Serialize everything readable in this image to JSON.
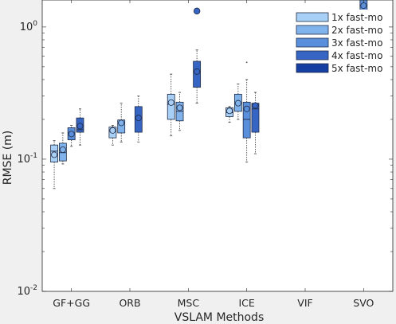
{
  "chart_data": {
    "type": "box",
    "title": "",
    "xlabel": "VSLAM Methods",
    "ylabel": "RMSE (m)",
    "y_scale": "log",
    "ylim": [
      0.01,
      1.6
    ],
    "y_ticks": [
      {
        "value": 0.01,
        "base": "10",
        "exp": "-2"
      },
      {
        "value": 0.1,
        "base": "10",
        "exp": "-1"
      },
      {
        "value": 1,
        "base": "10",
        "exp": "0"
      }
    ],
    "categories": [
      "GF+GG",
      "ORB",
      "MSC",
      "ICE",
      "VIF",
      "SVO"
    ],
    "legend_position": "top-right",
    "series": [
      {
        "name": "1x fast-mo",
        "color": "#a8cff5"
      },
      {
        "name": "2x fast-mo",
        "color": "#80b3ec"
      },
      {
        "name": "3x fast-mo",
        "color": "#5a8fdc"
      },
      {
        "name": "4x fast-mo",
        "color": "#3665c4"
      },
      {
        "name": "5x fast-mo",
        "color": "#163fa3"
      }
    ],
    "boxes": [
      {
        "category": "GF+GG",
        "series": "1x fast-mo",
        "q1": 0.095,
        "median": 0.115,
        "q3": 0.128,
        "whisker_low": 0.06,
        "whisker_high": 0.138,
        "mean": 0.108,
        "outliers": []
      },
      {
        "category": "GF+GG",
        "series": "2x fast-mo",
        "q1": 0.097,
        "median": 0.112,
        "q3": 0.132,
        "whisker_low": 0.092,
        "whisker_high": 0.158,
        "mean": 0.118,
        "outliers": []
      },
      {
        "category": "GF+GG",
        "series": "3x fast-mo",
        "q1": 0.14,
        "median": 0.158,
        "q3": 0.173,
        "whisker_low": 0.125,
        "whisker_high": 0.18,
        "mean": 0.155,
        "outliers": []
      },
      {
        "category": "GF+GG",
        "series": "4x fast-mo",
        "q1": 0.16,
        "median": 0.167,
        "q3": 0.205,
        "whisker_low": 0.128,
        "whisker_high": 0.24,
        "mean": 0.178,
        "outliers": []
      },
      {
        "category": "ORB",
        "series": "1x fast-mo",
        "q1": 0.145,
        "median": 0.162,
        "q3": 0.175,
        "whisker_low": 0.128,
        "whisker_high": 0.18,
        "mean": 0.165,
        "outliers": []
      },
      {
        "category": "ORB",
        "series": "2x fast-mo",
        "q1": 0.158,
        "median": 0.188,
        "q3": 0.198,
        "whisker_low": 0.135,
        "whisker_high": 0.265,
        "mean": 0.188,
        "outliers": []
      },
      {
        "category": "ORB",
        "series": "4x fast-mo",
        "q1": 0.16,
        "median": 0.205,
        "q3": 0.25,
        "whisker_low": 0.135,
        "whisker_high": 0.3,
        "mean": 0.205,
        "outliers": []
      },
      {
        "category": "MSC",
        "series": "1x fast-mo",
        "q1": 0.2,
        "median": 0.26,
        "q3": 0.31,
        "whisker_low": 0.15,
        "whisker_high": 0.44,
        "mean": 0.268,
        "outliers": []
      },
      {
        "category": "MSC",
        "series": "2x fast-mo",
        "q1": 0.195,
        "median": 0.23,
        "q3": 0.27,
        "whisker_low": 0.165,
        "whisker_high": 0.32,
        "mean": 0.245,
        "outliers": []
      },
      {
        "category": "MSC",
        "series": "4x fast-mo",
        "q1": 0.35,
        "median": 0.46,
        "q3": 0.55,
        "whisker_low": 0.265,
        "whisker_high": 0.67,
        "mean": 0.46,
        "outliers": [
          1.32
        ]
      },
      {
        "category": "ICE",
        "series": "1x fast-mo",
        "q1": 0.21,
        "median": 0.225,
        "q3": 0.245,
        "whisker_low": 0.19,
        "whisker_high": 0.25,
        "mean": 0.232,
        "outliers": []
      },
      {
        "category": "ICE",
        "series": "2x fast-mo",
        "q1": 0.23,
        "median": 0.265,
        "q3": 0.31,
        "whisker_low": 0.2,
        "whisker_high": 0.37,
        "mean": 0.265,
        "outliers": []
      },
      {
        "category": "ICE",
        "series": "3x fast-mo",
        "q1": 0.145,
        "median": 0.2,
        "q3": 0.27,
        "whisker_low": 0.095,
        "whisker_high": 0.4,
        "mean": 0.24,
        "outliers": [
          0.54
        ]
      },
      {
        "category": "ICE",
        "series": "4x fast-mo",
        "q1": 0.16,
        "median": 0.24,
        "q3": 0.265,
        "whisker_low": 0.11,
        "whisker_high": 0.32,
        "mean": 0.255,
        "outliers": []
      },
      {
        "category": "SVO",
        "series": "3x fast-mo",
        "q1": 1.35,
        "median": 1.45,
        "q3": 1.6,
        "whisker_low": 1.32,
        "whisker_high": 1.6,
        "mean": 1.45,
        "outliers": []
      }
    ],
    "grid": false
  }
}
